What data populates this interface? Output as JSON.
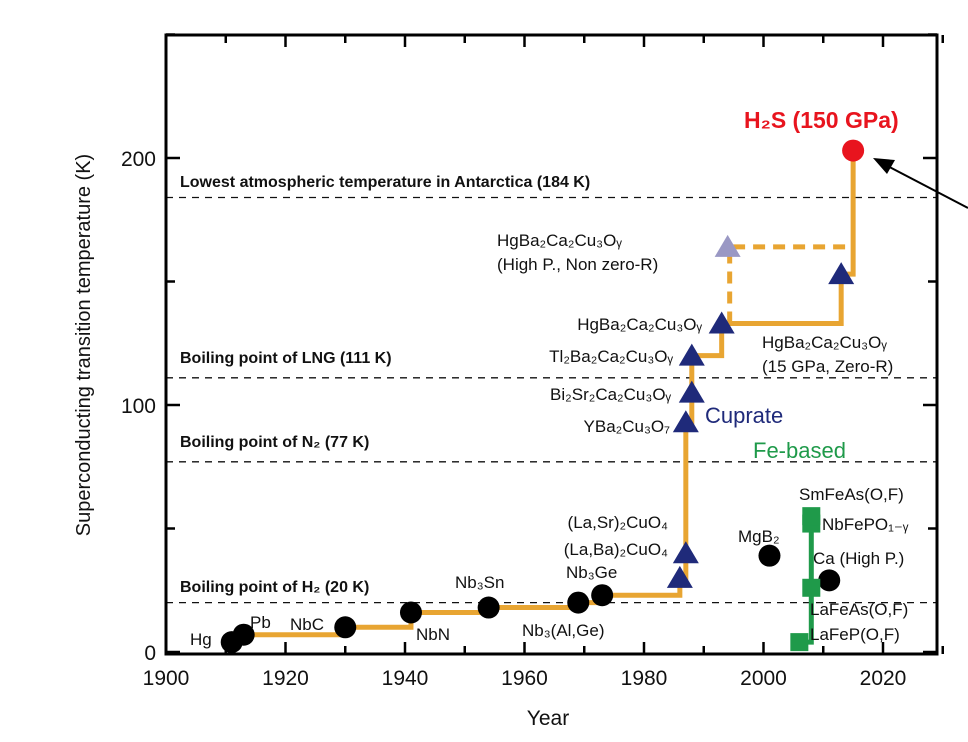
{
  "chart_data": {
    "type": "scatter",
    "xlabel": "Year",
    "ylabel": "Superconducting transition temperature (K)",
    "xlim": [
      1900,
      2030
    ],
    "ylim": [
      0,
      250
    ],
    "xticks": [
      "1900",
      "1920",
      "1940",
      "1960",
      "1980",
      "2000",
      "2020"
    ],
    "yticks": [
      "0",
      "100",
      "200"
    ],
    "grid": false,
    "colors": {
      "step_line": "#e8a532",
      "cuprate": "#1f2a7a",
      "cuprate_high_p": "#9a98c4",
      "fe_based": "#1f9a4a",
      "conventional": "#000000",
      "h2s": "#e8141e"
    },
    "reference_lines": [
      {
        "label": "Lowest atmospheric temperature in Antarctica (184 K)",
        "value": 184
      },
      {
        "label": "Boiling point of LNG (111 K)",
        "value": 111
      },
      {
        "label": "Boiling point of N₂ (77 K)",
        "value": 77
      },
      {
        "label": "Boiling point of H₂ (20 K)",
        "value": 20
      }
    ],
    "group_labels": {
      "cuprate": "Cuprate",
      "fe_based": "Fe-based"
    },
    "series": [
      {
        "group": "conventional",
        "points": [
          {
            "label": "Hg",
            "x": 1911,
            "y": 4
          },
          {
            "label": "Pb",
            "x": 1913,
            "y": 7
          },
          {
            "label": "NbC",
            "x": 1930,
            "y": 10
          },
          {
            "label": "NbN",
            "x": 1941,
            "y": 16
          },
          {
            "label": "Nb₃Sn",
            "x": 1954,
            "y": 18
          },
          {
            "label": "Nb₃(Al,Ge)",
            "x": 1969,
            "y": 20
          },
          {
            "label": "Nb₃Ge",
            "x": 1973,
            "y": 23
          },
          {
            "label": "MgB₂",
            "x": 2001,
            "y": 39
          },
          {
            "label": "Ca (High P.)",
            "x": 2011,
            "y": 29
          }
        ]
      },
      {
        "group": "cuprate",
        "points": [
          {
            "label": "(La,Ba)₂CuO₄",
            "x": 1986,
            "y": 30
          },
          {
            "label": "(La,Sr)₂CuO₄",
            "x": 1987,
            "y": 40
          },
          {
            "label": "YBa₂Cu₃O₇",
            "x": 1987,
            "y": 93
          },
          {
            "label": "Bi₂Sr₂Ca₂Cu₃Oᵧ",
            "x": 1988,
            "y": 105
          },
          {
            "label": "Tl₂Ba₂Ca₂Cu₃Oᵧ",
            "x": 1988,
            "y": 120
          },
          {
            "label": "HgBa₂Ca₂Cu₃Oᵧ",
            "x": 1993,
            "y": 133
          },
          {
            "label": "HgBa₂Ca₂Cu₃Oᵧ|(15 GPa, Zero-R)",
            "x": 2013,
            "y": 153
          }
        ]
      },
      {
        "group": "cuprate_high_p",
        "points": [
          {
            "label": "HgBa₂Ca₂Cu₃Oᵧ|(High P., Non zero-R)",
            "x": 1994,
            "y": 164
          }
        ]
      },
      {
        "group": "fe_based",
        "points": [
          {
            "label": "LaFeP(O,F)",
            "x": 2006,
            "y": 4
          },
          {
            "label": "LaFeAs(O,F)",
            "x": 2008,
            "y": 26
          },
          {
            "label": "NbFePO₁₋ᵧ",
            "x": 2008,
            "y": 52
          },
          {
            "label": "SmFeAs(O,F)",
            "x": 2008,
            "y": 55
          }
        ]
      },
      {
        "group": "h2s",
        "points": [
          {
            "label": "H₂S (150 GPa)",
            "x": 2015,
            "y": 203
          }
        ]
      }
    ]
  }
}
